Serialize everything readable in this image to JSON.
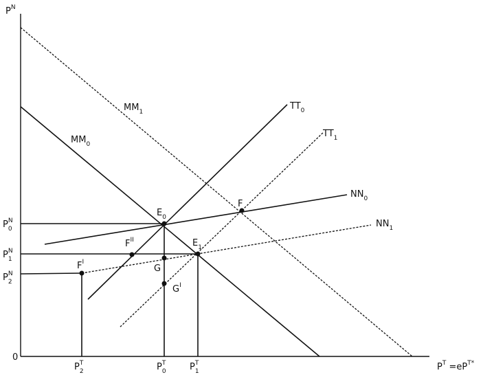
{
  "labels": [
    [
      {
        "text": "P",
        "pos": "base"
      },
      {
        "text": "N",
        "pos": "sup"
      }
    ],
    [
      {
        "text": "0",
        "pos": "base"
      }
    ],
    [
      {
        "text": "P",
        "pos": "base"
      },
      {
        "text": "0",
        "pos": "sub"
      },
      {
        "text": "N",
        "pos": "sup"
      }
    ],
    [
      {
        "text": "P",
        "pos": "base"
      },
      {
        "text": "1",
        "pos": "sub"
      },
      {
        "text": "N",
        "pos": "sup"
      }
    ],
    [
      {
        "text": "P",
        "pos": "base"
      },
      {
        "text": "2",
        "pos": "sub"
      },
      {
        "text": "N",
        "pos": "sup"
      }
    ],
    [
      {
        "text": "P",
        "pos": "base"
      },
      {
        "text": "2",
        "pos": "sub"
      },
      {
        "text": "T",
        "pos": "sup"
      }
    ],
    [
      {
        "text": "P",
        "pos": "base"
      },
      {
        "text": "0",
        "pos": "sub"
      },
      {
        "text": "T",
        "pos": "sup"
      }
    ],
    [
      {
        "text": "P",
        "pos": "base"
      },
      {
        "text": "1",
        "pos": "sub"
      },
      {
        "text": "T",
        "pos": "sup"
      }
    ],
    [
      {
        "text": "P",
        "pos": "base"
      },
      {
        "text": "T",
        "pos": "sup"
      },
      {
        "text": " =eP",
        "pos": "base"
      },
      {
        "text": "T*",
        "pos": "sup"
      }
    ],
    [
      {
        "text": "MM",
        "pos": "base"
      },
      {
        "text": "1",
        "pos": "sub"
      }
    ],
    [
      {
        "text": "MM",
        "pos": "base"
      },
      {
        "text": "0",
        "pos": "sub"
      }
    ],
    [
      {
        "text": "TT",
        "pos": "base"
      },
      {
        "text": "0",
        "pos": "sub"
      }
    ],
    [
      {
        "text": "TT",
        "pos": "base"
      },
      {
        "text": "1",
        "pos": "sub"
      }
    ],
    [
      {
        "text": "NN",
        "pos": "base"
      },
      {
        "text": "0",
        "pos": "sub"
      }
    ],
    [
      {
        "text": "NN",
        "pos": "base"
      },
      {
        "text": "1",
        "pos": "sub"
      }
    ],
    [
      {
        "text": "E",
        "pos": "base"
      },
      {
        "text": "0",
        "pos": "sub"
      }
    ],
    [
      {
        "text": "F",
        "pos": "base"
      }
    ],
    [
      {
        "text": "E",
        "pos": "base"
      },
      {
        "text": "1",
        "pos": "sub"
      }
    ],
    [
      {
        "text": "F",
        "pos": "base"
      },
      {
        "text": "II",
        "pos": "sup"
      }
    ],
    [
      {
        "text": "G",
        "pos": "base"
      }
    ],
    [
      {
        "text": "G",
        "pos": "base"
      },
      {
        "text": "I",
        "pos": "sup"
      }
    ],
    [
      {
        "text": "F",
        "pos": "base"
      },
      {
        "text": "I",
        "pos": "sup"
      }
    ]
  ]
}
